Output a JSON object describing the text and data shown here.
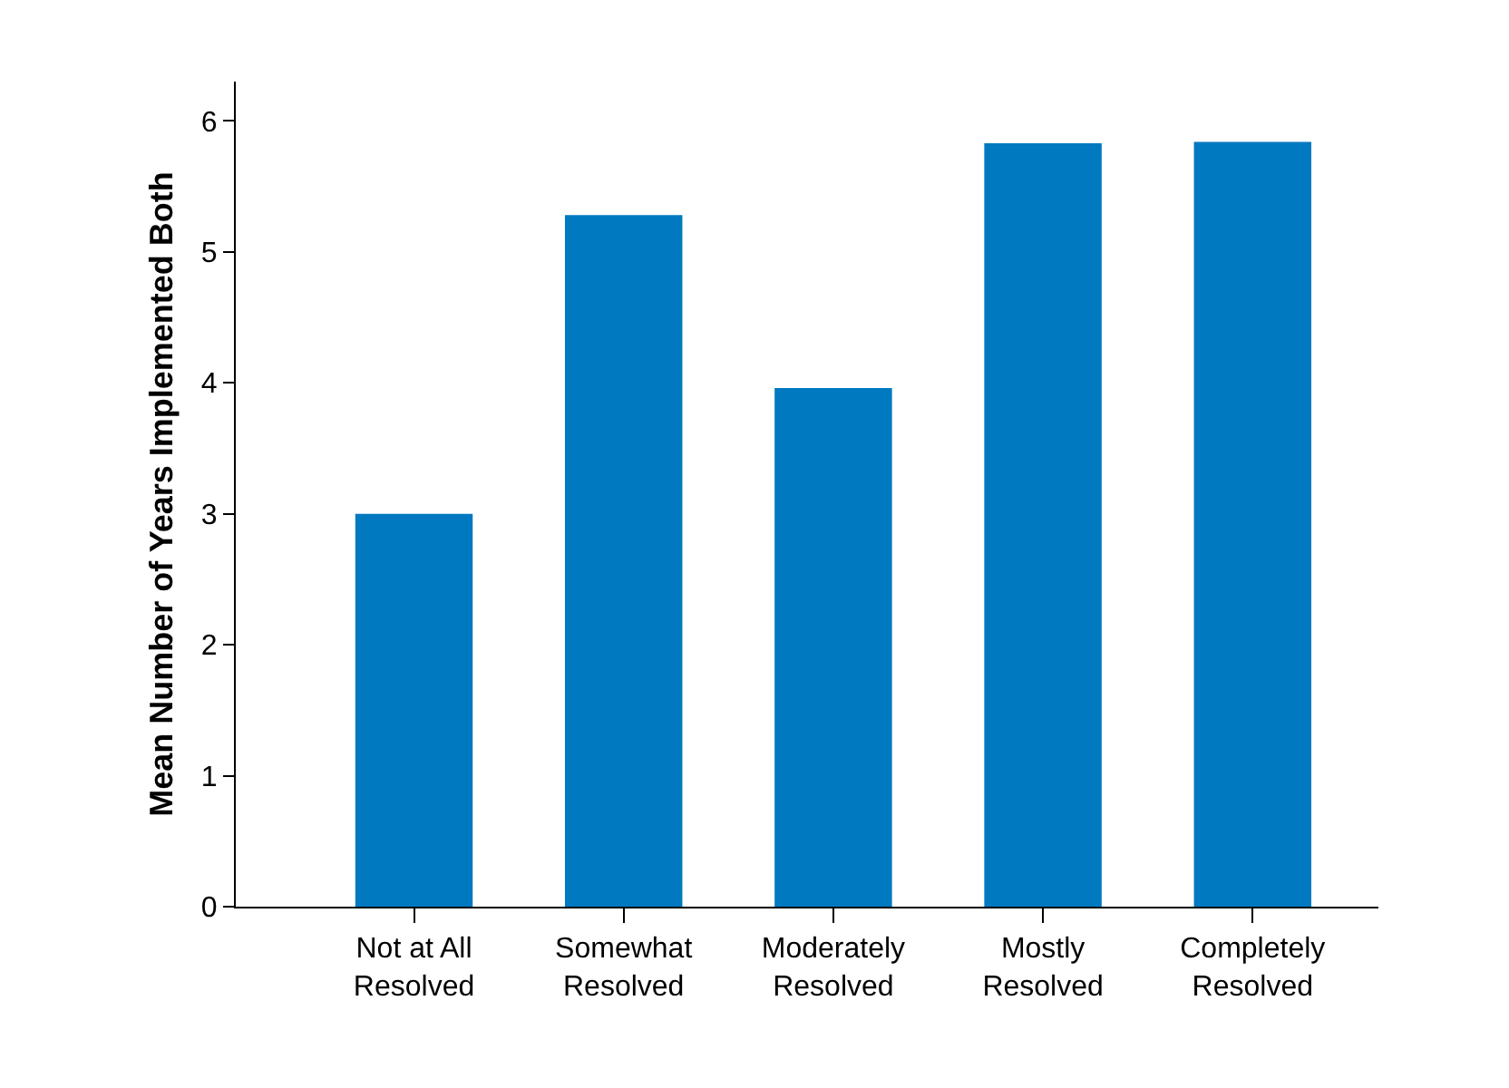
{
  "chart_data": {
    "type": "bar",
    "ylabel": "Mean Number of Years Implemented Both",
    "categories": [
      "Not at All\nResolved",
      "Somewhat\nResolved",
      "Moderately\nResolved",
      "Mostly\nResolved",
      "Completely\nResolved"
    ],
    "values": [
      3.0,
      5.28,
      3.96,
      5.83,
      5.84
    ],
    "color": "#0079c1",
    "ylim": [
      0,
      6.3
    ],
    "yticks": [
      0,
      1,
      2,
      3,
      4,
      5,
      6
    ]
  }
}
